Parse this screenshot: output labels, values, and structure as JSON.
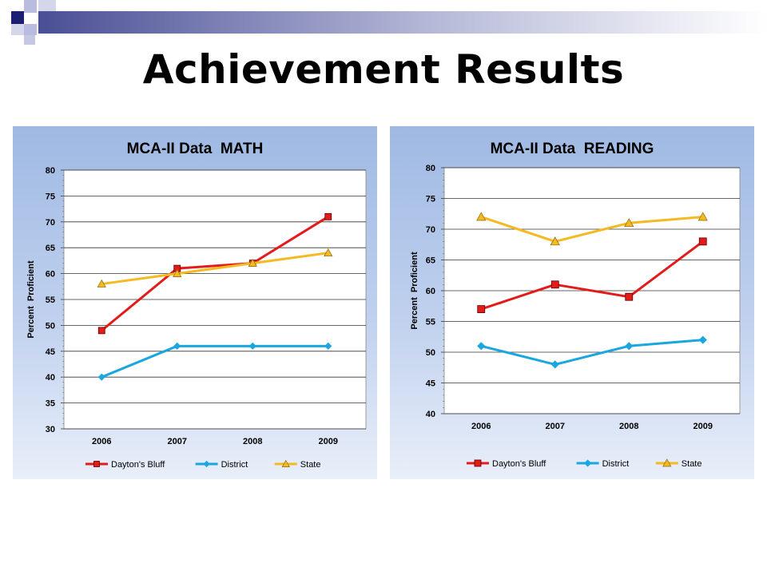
{
  "slide": {
    "title": "Achievement Results"
  },
  "colors": {
    "daytons_bluff": "#e31b1b",
    "district": "#1aa7e0",
    "state": "#f5b921",
    "deco_navy": "#1b1f73",
    "deco_light": "#b9bce0"
  },
  "chart_data": [
    {
      "type": "line",
      "title": "MCA-II Data  MATH",
      "xlabel": "",
      "ylabel": "Percent  Proficient",
      "categories": [
        "2006",
        "2007",
        "2008",
        "2009"
      ],
      "ylim": [
        30,
        80
      ],
      "yticks": [
        "30",
        "35",
        "40",
        "45",
        "50",
        "55",
        "60",
        "65",
        "70",
        "75",
        "80"
      ],
      "grid": true,
      "legend": "bottom",
      "series": [
        {
          "name": "Dayton's Bluff",
          "values": [
            49,
            61,
            62,
            71
          ],
          "color": "#e31b1b",
          "marker": "square"
        },
        {
          "name": "District",
          "values": [
            40,
            46,
            46,
            46
          ],
          "color": "#1aa7e0",
          "marker": "diamond"
        },
        {
          "name": "State",
          "values": [
            58,
            60,
            62,
            64
          ],
          "color": "#f5b921",
          "marker": "triangle"
        }
      ]
    },
    {
      "type": "line",
      "title": "MCA-II Data  READING",
      "xlabel": "",
      "ylabel": "Percent  Proficient",
      "categories": [
        "2006",
        "2007",
        "2008",
        "2009"
      ],
      "ylim": [
        40,
        80
      ],
      "yticks": [
        "40",
        "45",
        "50",
        "55",
        "60",
        "65",
        "70",
        "75",
        "80"
      ],
      "grid": true,
      "legend": "bottom",
      "series": [
        {
          "name": "Dayton's Bluff",
          "values": [
            57,
            61,
            59,
            68
          ],
          "color": "#e31b1b",
          "marker": "square"
        },
        {
          "name": "District",
          "values": [
            51,
            48,
            51,
            52
          ],
          "color": "#1aa7e0",
          "marker": "diamond"
        },
        {
          "name": "State",
          "values": [
            72,
            68,
            71,
            72
          ],
          "color": "#f5b921",
          "marker": "triangle"
        }
      ]
    }
  ]
}
